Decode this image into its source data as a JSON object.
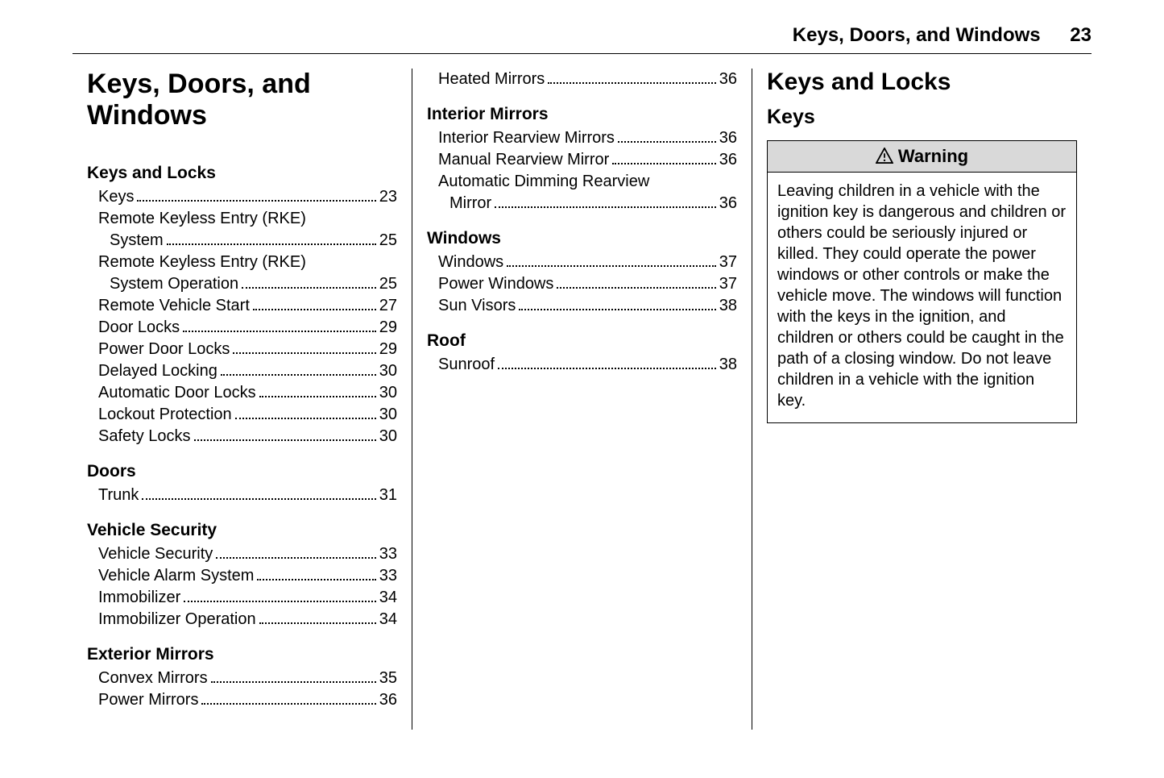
{
  "header": {
    "title": "Keys, Doors, and Windows",
    "page": "23"
  },
  "chapter_title": "Keys, Doors, and Windows",
  "toc": [
    {
      "head": "Keys and Locks",
      "items": [
        {
          "label": "Keys",
          "page": "23"
        },
        {
          "label": "Remote Keyless Entry (RKE)",
          "cont": "System",
          "page": "25"
        },
        {
          "label": "Remote Keyless Entry (RKE)",
          "cont": "System Operation",
          "page": "25"
        },
        {
          "label": "Remote Vehicle Start",
          "page": "27"
        },
        {
          "label": "Door Locks",
          "page": "29"
        },
        {
          "label": "Power Door Locks",
          "page": "29"
        },
        {
          "label": "Delayed Locking",
          "page": "30"
        },
        {
          "label": "Automatic Door Locks",
          "page": "30"
        },
        {
          "label": "Lockout Protection",
          "page": "30"
        },
        {
          "label": "Safety Locks",
          "page": "30"
        }
      ]
    },
    {
      "head": "Doors",
      "items": [
        {
          "label": "Trunk",
          "page": "31"
        }
      ]
    },
    {
      "head": "Vehicle Security",
      "items": [
        {
          "label": "Vehicle Security",
          "page": "33"
        },
        {
          "label": "Vehicle Alarm System",
          "page": "33"
        },
        {
          "label": "Immobilizer",
          "page": "34"
        },
        {
          "label": "Immobilizer Operation",
          "page": "34"
        }
      ]
    },
    {
      "head": "Exterior Mirrors",
      "items": [
        {
          "label": "Convex Mirrors",
          "page": "35"
        },
        {
          "label": "Power Mirrors",
          "page": "36"
        }
      ]
    }
  ],
  "toc2": [
    {
      "head": null,
      "items": [
        {
          "label": "Heated Mirrors",
          "page": "36"
        }
      ]
    },
    {
      "head": "Interior Mirrors",
      "items": [
        {
          "label": "Interior Rearview Mirrors",
          "page": "36"
        },
        {
          "label": "Manual Rearview Mirror",
          "page": "36"
        },
        {
          "label": "Automatic Dimming Rearview",
          "cont": "Mirror",
          "page": "36"
        }
      ]
    },
    {
      "head": "Windows",
      "items": [
        {
          "label": "Windows",
          "page": "37"
        },
        {
          "label": "Power Windows",
          "page": "37"
        },
        {
          "label": "Sun Visors",
          "page": "38"
        }
      ]
    },
    {
      "head": "Roof",
      "items": [
        {
          "label": "Sunroof",
          "page": "38"
        }
      ]
    }
  ],
  "right": {
    "h1": "Keys and Locks",
    "h2": "Keys",
    "warning_label": "Warning",
    "warning_text": "Leaving children in a vehicle with the ignition key is dangerous and children or others could be seriously injured or killed. They could operate the power windows or other controls or make the vehicle move. The windows will function with the keys in the ignition, and children or others could be caught in the path of a closing window. Do not leave children in a vehicle with the ignition key."
  },
  "colors": {
    "text": "#000000",
    "background": "#ffffff",
    "warning_bg": "#d9d9d9",
    "border": "#000000"
  }
}
